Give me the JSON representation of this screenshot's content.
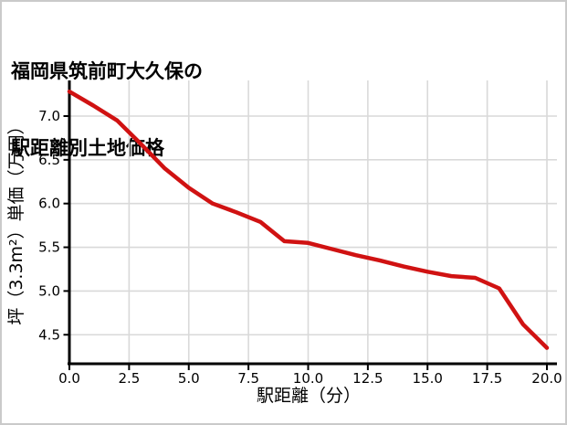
{
  "window": {
    "background": "#ffffff",
    "border_color": "#cacaca"
  },
  "title": {
    "line1": "福岡県筑前町大久保の",
    "line2": "駅距離別土地価格"
  },
  "chart_data": {
    "type": "line",
    "title": "福岡県筑前町大久保の駅距離別土地価格",
    "xlabel": "駅距離（分）",
    "ylabel": "坪（3.3m²）単価（万円）",
    "series": [
      {
        "name": "駅距離別土地価格",
        "x": [
          0,
          1,
          2,
          3,
          4,
          5,
          6,
          7,
          8,
          9,
          10,
          11,
          12,
          13,
          14,
          15,
          16,
          17,
          18,
          19,
          20
        ],
        "values": [
          7.28,
          7.12,
          6.95,
          6.68,
          6.4,
          6.18,
          6.0,
          5.9,
          5.79,
          5.57,
          5.55,
          5.48,
          5.41,
          5.35,
          5.28,
          5.22,
          5.17,
          5.15,
          5.03,
          4.62,
          4.35
        ]
      }
    ],
    "xlim": [
      0,
      20.4
    ],
    "ylim": [
      4.17,
      7.41
    ],
    "xticks": [
      0,
      2.5,
      5,
      7.5,
      10,
      12.5,
      15,
      17.5,
      20
    ],
    "xtick_labels": [
      "0.0",
      "2.5",
      "5.0",
      "7.5",
      "10.0",
      "12.5",
      "15.0",
      "17.5",
      "20.0"
    ],
    "yticks": [
      4.5,
      5.0,
      5.5,
      6.0,
      6.5,
      7.0
    ],
    "ytick_labels": [
      "4.5",
      "5.0",
      "5.5",
      "6.0",
      "6.5",
      "7.0"
    ],
    "grid": true,
    "legend": "none",
    "line_color": "#d01212",
    "grid_color": "#d9d9d9",
    "axis_color": "#000000"
  }
}
